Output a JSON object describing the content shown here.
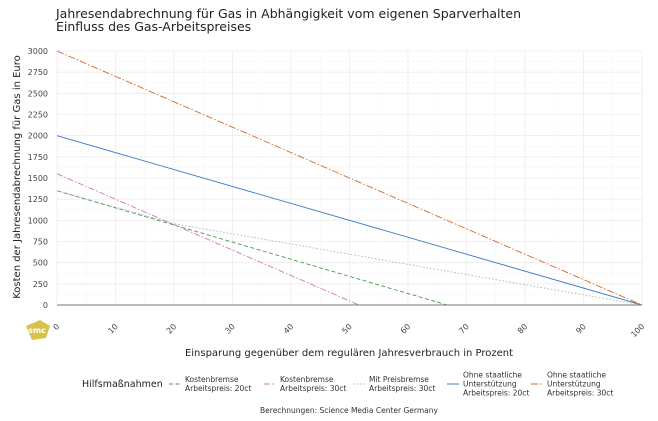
{
  "chart_data": {
    "type": "line",
    "title": "Jahresendabrechnung für Gas in Abhängigkeit vom eigenen Sparverhalten",
    "subtitle": "Einfluss des Gas-Arbeitspreises",
    "xlabel": "Einsparung gegenüber dem regulären Jahresverbrauch in Prozent",
    "ylabel": "Kosten der Jahresendabrechnung für Gas in Euro",
    "xlim": [
      0,
      100
    ],
    "ylim": [
      0,
      3000
    ],
    "x_ticks": [
      "0",
      "10",
      "20",
      "30",
      "40",
      "50",
      "60",
      "70",
      "80",
      "90",
      "100"
    ],
    "y_ticks": [
      "0",
      "250",
      "500",
      "750",
      "1000",
      "1250",
      "1500",
      "1750",
      "2000",
      "2250",
      "2500",
      "2750",
      "3000"
    ],
    "grid": true,
    "legend_title": "Hilfsmaßnahmen",
    "legend_position": "bottom",
    "caption": "Berechnungen: Science Media Center Germany",
    "series": [
      {
        "name": [
          "Kostenbremse",
          "Arbeitspreis: 20ct"
        ],
        "color": "#4a9a4a",
        "dash": "4,2.5",
        "points": [
          [
            0,
            1350
          ],
          [
            66.7,
            0
          ]
        ]
      },
      {
        "name": [
          "Kostenbremse",
          "Arbeitspreis: 30ct"
        ],
        "color": "#d07ab0",
        "dash": "6,2,1.5,2",
        "points": [
          [
            0,
            1550
          ],
          [
            51.6,
            0
          ]
        ]
      },
      {
        "name": [
          "Mit Preisbremse",
          "Arbeitspreis: 30ct"
        ],
        "color": "#b0b0b0",
        "dash": "1.5,2",
        "points": [
          [
            0,
            1350
          ],
          [
            20,
            960
          ],
          [
            40,
            720
          ],
          [
            60,
            480
          ],
          [
            80,
            240
          ],
          [
            100,
            0
          ]
        ]
      },
      {
        "name": [
          "Ohne staatliche",
          "Unterstützung",
          "Arbeitspreis: 20ct"
        ],
        "color": "#3a7cc4",
        "dash": "",
        "points": [
          [
            0,
            2000
          ],
          [
            100,
            0
          ]
        ]
      },
      {
        "name": [
          "Ohne staatliche",
          "Unterstützung",
          "Arbeitspreis: 30ct"
        ],
        "color": "#d4682a",
        "dash": "7,2,1.5,2",
        "points": [
          [
            0,
            3000
          ],
          [
            100,
            0
          ]
        ]
      }
    ]
  },
  "logo": {
    "text": "smc",
    "color": "#d9c24a"
  }
}
